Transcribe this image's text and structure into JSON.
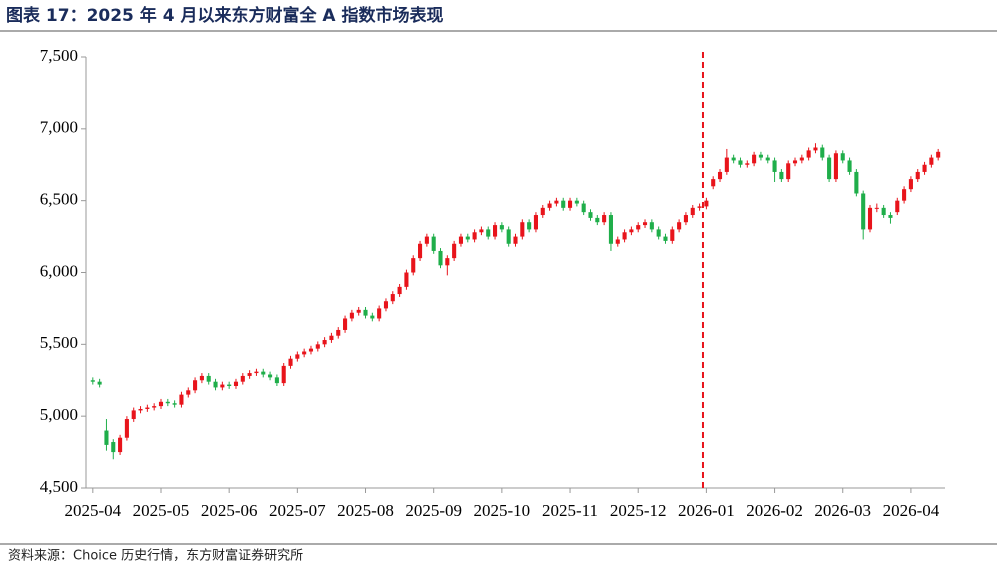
{
  "chart_data": {
    "type": "candlestick",
    "title": "图表 17：2025 年 4 月以来东方财富全 A 指数市场表现",
    "source": "资料来源：Choice 历史行情，东方财富证券研究所",
    "up_color": "#e8141b",
    "down_color": "#1fae4a",
    "marker": {
      "x": 89.5,
      "color": "#e8141b"
    },
    "xlim": [
      -1,
      125
    ],
    "xticks": [
      {
        "value": 0,
        "label": "2025-04"
      },
      {
        "value": 10,
        "label": "2025-05"
      },
      {
        "value": 20,
        "label": "2025-06"
      },
      {
        "value": 30,
        "label": "2025-07"
      },
      {
        "value": 40,
        "label": "2025-08"
      },
      {
        "value": 50,
        "label": "2025-09"
      },
      {
        "value": 60,
        "label": "2025-10"
      },
      {
        "value": 70,
        "label": "2025-11"
      },
      {
        "value": 80,
        "label": "2025-12"
      },
      {
        "value": 90,
        "label": "2026-01"
      },
      {
        "value": 100,
        "label": "2026-02"
      },
      {
        "value": 110,
        "label": "2026-03"
      },
      {
        "value": 120,
        "label": "2026-04"
      }
    ],
    "ylim": [
      4500,
      7500
    ],
    "yticks": [
      {
        "value": 4500,
        "label": "4,500"
      },
      {
        "value": 5000,
        "label": "5,000"
      },
      {
        "value": 5500,
        "label": "5,500"
      },
      {
        "value": 6000,
        "label": "6,000"
      },
      {
        "value": 6500,
        "label": "6,500"
      },
      {
        "value": 7000,
        "label": "7,000"
      },
      {
        "value": 7500,
        "label": "7,500"
      }
    ],
    "open": [
      5250,
      5240,
      4900,
      4820,
      4750,
      4850,
      4980,
      5040,
      5050,
      5060,
      5070,
      5100,
      5090,
      5080,
      5150,
      5180,
      5250,
      5280,
      5240,
      5200,
      5220,
      5210,
      5240,
      5280,
      5300,
      5310,
      5290,
      5270,
      5230,
      5350,
      5400,
      5430,
      5450,
      5470,
      5500,
      5530,
      5560,
      5600,
      5680,
      5720,
      5740,
      5700,
      5680,
      5750,
      5800,
      5850,
      5900,
      6000,
      6100,
      6200,
      6250,
      6150,
      6050,
      6100,
      6200,
      6250,
      6230,
      6280,
      6300,
      6250,
      6330,
      6300,
      6200,
      6250,
      6350,
      6300,
      6400,
      6450,
      6480,
      6500,
      6450,
      6500,
      6480,
      6420,
      6380,
      6350,
      6400,
      6200,
      6230,
      6280,
      6300,
      6330,
      6350,
      6300,
      6250,
      6220,
      6300,
      6350,
      6400,
      6450,
      6460,
      6600,
      6650,
      6700,
      6800,
      6780,
      6750,
      6760,
      6820,
      6800,
      6780,
      6700,
      6650,
      6760,
      6780,
      6800,
      6850,
      6870,
      6800,
      6650,
      6830,
      6780,
      6700,
      6550,
      6300,
      6450,
      6450,
      6400,
      6420,
      6500,
      6580,
      6650,
      6700,
      6750,
      6800
    ],
    "high": [
      5270,
      5260,
      4980,
      4840,
      4870,
      5000,
      5060,
      5070,
      5080,
      5090,
      5120,
      5120,
      5110,
      5170,
      5200,
      5270,
      5300,
      5300,
      5260,
      5240,
      5240,
      5260,
      5300,
      5320,
      5330,
      5330,
      5310,
      5290,
      5370,
      5420,
      5450,
      5470,
      5490,
      5520,
      5550,
      5580,
      5620,
      5700,
      5740,
      5760,
      5760,
      5720,
      5770,
      5820,
      5870,
      5920,
      6020,
      6120,
      6220,
      6270,
      6270,
      6170,
      6120,
      6220,
      6270,
      6270,
      6300,
      6320,
      6320,
      6350,
      6350,
      6320,
      6270,
      6370,
      6370,
      6420,
      6470,
      6500,
      6520,
      6520,
      6520,
      6520,
      6500,
      6440,
      6400,
      6420,
      6420,
      6250,
      6300,
      6320,
      6350,
      6370,
      6370,
      6320,
      6270,
      6320,
      6370,
      6420,
      6470,
      6480,
      6520,
      6670,
      6720,
      6860,
      6820,
      6800,
      6780,
      6840,
      6840,
      6820,
      6800,
      6720,
      6780,
      6800,
      6820,
      6870,
      6900,
      6890,
      6820,
      6850,
      6850,
      6800,
      6720,
      6570,
      6470,
      6480,
      6470,
      6420,
      6520,
      6600,
      6670,
      6720,
      6770,
      6820,
      6860
    ],
    "low": [
      5220,
      5200,
      4760,
      4700,
      4730,
      4830,
      4960,
      5020,
      5030,
      5040,
      5050,
      5070,
      5060,
      5060,
      5130,
      5160,
      5230,
      5220,
      5180,
      5180,
      5190,
      5190,
      5220,
      5260,
      5280,
      5270,
      5250,
      5210,
      5210,
      5330,
      5380,
      5410,
      5430,
      5450,
      5480,
      5510,
      5540,
      5580,
      5660,
      5700,
      5680,
      5660,
      5660,
      5730,
      5780,
      5830,
      5880,
      5980,
      6080,
      6180,
      6130,
      6030,
      5980,
      6080,
      6180,
      6210,
      6210,
      6260,
      6230,
      6230,
      6280,
      6180,
      6180,
      6230,
      6280,
      6280,
      6380,
      6430,
      6460,
      6430,
      6430,
      6460,
      6400,
      6360,
      6330,
      6330,
      6150,
      6180,
      6210,
      6260,
      6280,
      6310,
      6280,
      6230,
      6200,
      6200,
      6280,
      6330,
      6380,
      6430,
      6440,
      6580,
      6630,
      6680,
      6760,
      6730,
      6730,
      6740,
      6780,
      6760,
      6630,
      6630,
      6630,
      6740,
      6760,
      6780,
      6830,
      6780,
      6630,
      6630,
      6760,
      6680,
      6530,
      6230,
      6280,
      6420,
      6380,
      6340,
      6400,
      6480,
      6560,
      6630,
      6680,
      6730,
      6780
    ],
    "close": [
      5240,
      5220,
      4800,
      4750,
      4850,
      4980,
      5040,
      5050,
      5060,
      5070,
      5100,
      5090,
      5080,
      5150,
      5180,
      5250,
      5280,
      5240,
      5200,
      5220,
      5210,
      5240,
      5280,
      5300,
      5310,
      5290,
      5270,
      5230,
      5350,
      5400,
      5430,
      5450,
      5470,
      5500,
      5530,
      5560,
      5600,
      5680,
      5720,
      5740,
      5700,
      5680,
      5750,
      5800,
      5850,
      5900,
      6000,
      6100,
      6200,
      6250,
      6150,
      6050,
      6100,
      6200,
      6250,
      6230,
      6280,
      6300,
      6250,
      6330,
      6300,
      6200,
      6250,
      6350,
      6300,
      6400,
      6450,
      6480,
      6500,
      6450,
      6500,
      6480,
      6420,
      6380,
      6350,
      6400,
      6200,
      6230,
      6280,
      6300,
      6330,
      6350,
      6300,
      6250,
      6220,
      6300,
      6350,
      6400,
      6450,
      6460,
      6500,
      6650,
      6700,
      6800,
      6780,
      6750,
      6760,
      6820,
      6800,
      6780,
      6700,
      6650,
      6760,
      6780,
      6800,
      6850,
      6870,
      6800,
      6650,
      6830,
      6780,
      6700,
      6550,
      6300,
      6450,
      6450,
      6400,
      6380,
      6500,
      6580,
      6650,
      6700,
      6750,
      6800,
      6840
    ]
  }
}
